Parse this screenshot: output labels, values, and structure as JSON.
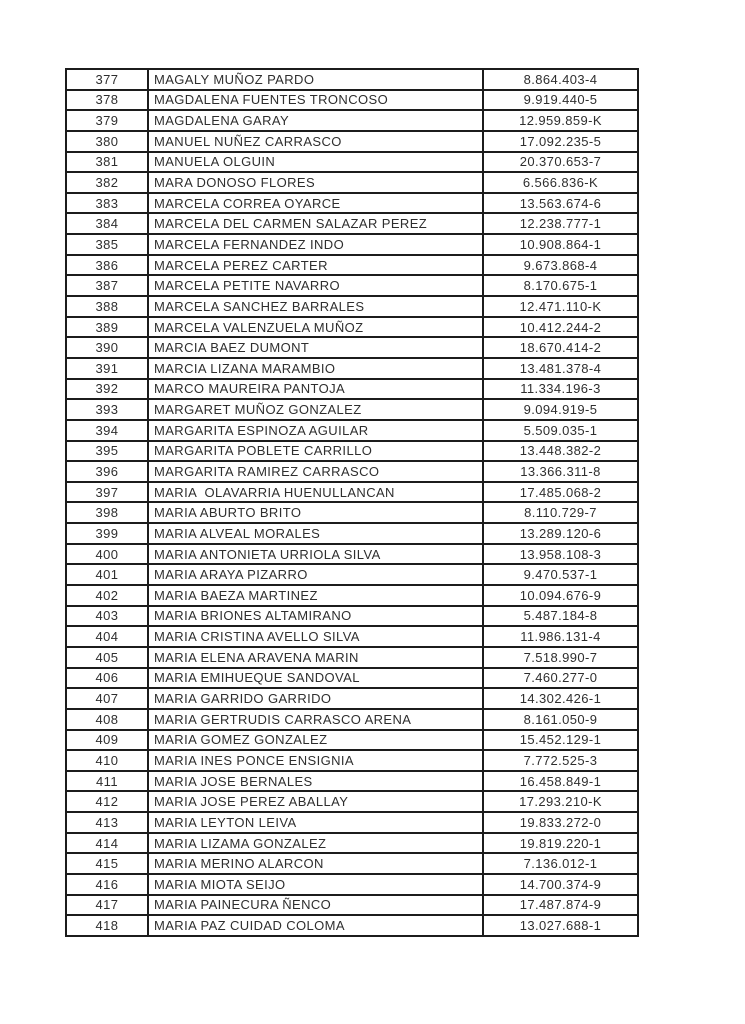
{
  "colors": {
    "text": "#2e2e2e",
    "border": "#1c1c1c",
    "background": "#ffffff"
  },
  "table": {
    "columns": [
      "row_number",
      "name",
      "rut"
    ],
    "rows": [
      [
        "377",
        "MAGALY MUÑOZ PARDO",
        "8.864.403-4"
      ],
      [
        "378",
        "MAGDALENA FUENTES TRONCOSO",
        "9.919.440-5"
      ],
      [
        "379",
        "MAGDALENA GARAY",
        "12.959.859-K"
      ],
      [
        "380",
        "MANUEL NUÑEZ CARRASCO",
        "17.092.235-5"
      ],
      [
        "381",
        "MANUELA OLGUIN",
        "20.370.653-7"
      ],
      [
        "382",
        "MARA DONOSO FLORES",
        "6.566.836-K"
      ],
      [
        "383",
        "MARCELA CORREA OYARCE",
        "13.563.674-6"
      ],
      [
        "384",
        "MARCELA DEL CARMEN SALAZAR PEREZ",
        "12.238.777-1"
      ],
      [
        "385",
        "MARCELA FERNANDEZ INDO",
        "10.908.864-1"
      ],
      [
        "386",
        "MARCELA PEREZ CARTER",
        "9.673.868-4"
      ],
      [
        "387",
        "MARCELA PETITE NAVARRO",
        "8.170.675-1"
      ],
      [
        "388",
        "MARCELA SANCHEZ BARRALES",
        "12.471.110-K"
      ],
      [
        "389",
        "MARCELA VALENZUELA MUÑOZ",
        "10.412.244-2"
      ],
      [
        "390",
        "MARCIA BAEZ DUMONT",
        "18.670.414-2"
      ],
      [
        "391",
        "MARCIA LIZANA MARAMBIO",
        "13.481.378-4"
      ],
      [
        "392",
        "MARCO MAUREIRA PANTOJA",
        "11.334.196-3"
      ],
      [
        "393",
        "MARGARET MUÑOZ GONZALEZ",
        "9.094.919-5"
      ],
      [
        "394",
        "MARGARITA ESPINOZA AGUILAR",
        "5.509.035-1"
      ],
      [
        "395",
        "MARGARITA POBLETE CARRILLO",
        "13.448.382-2"
      ],
      [
        "396",
        "MARGARITA RAMIREZ CARRASCO",
        "13.366.311-8"
      ],
      [
        "397",
        "MARIA  OLAVARRIA HUENULLANCAN",
        "17.485.068-2"
      ],
      [
        "398",
        "MARIA ABURTO BRITO",
        "8.110.729-7"
      ],
      [
        "399",
        "MARIA ALVEAL MORALES",
        "13.289.120-6"
      ],
      [
        "400",
        "MARIA ANTONIETA URRIOLA SILVA",
        "13.958.108-3"
      ],
      [
        "401",
        "MARIA ARAYA PIZARRO",
        "9.470.537-1"
      ],
      [
        "402",
        "MARIA BAEZA MARTINEZ",
        "10.094.676-9"
      ],
      [
        "403",
        "MARIA BRIONES ALTAMIRANO",
        "5.487.184-8"
      ],
      [
        "404",
        "MARIA CRISTINA AVELLO SILVA",
        "11.986.131-4"
      ],
      [
        "405",
        "MARIA ELENA ARAVENA MARIN",
        "7.518.990-7"
      ],
      [
        "406",
        "MARIA EMIHUEQUE SANDOVAL",
        "7.460.277-0"
      ],
      [
        "407",
        "MARIA GARRIDO GARRIDO",
        "14.302.426-1"
      ],
      [
        "408",
        "MARIA GERTRUDIS CARRASCO ARENA",
        "8.161.050-9"
      ],
      [
        "409",
        "MARIA GOMEZ GONZALEZ",
        "15.452.129-1"
      ],
      [
        "410",
        "MARIA INES PONCE ENSIGNIA",
        "7.772.525-3"
      ],
      [
        "411",
        "MARIA JOSE BERNALES",
        "16.458.849-1"
      ],
      [
        "412",
        "MARIA JOSE PEREZ ABALLAY",
        "17.293.210-K"
      ],
      [
        "413",
        "MARIA LEYTON LEIVA",
        "19.833.272-0"
      ],
      [
        "414",
        "MARIA LIZAMA GONZALEZ",
        "19.819.220-1"
      ],
      [
        "415",
        "MARIA MERINO ALARCON",
        "7.136.012-1"
      ],
      [
        "416",
        "MARIA MIOTA SEIJO",
        "14.700.374-9"
      ],
      [
        "417",
        "MARIA PAINECURA ÑENCO",
        "17.487.874-9"
      ],
      [
        "418",
        "MARIA PAZ CUIDAD COLOMA",
        "13.027.688-1"
      ]
    ]
  }
}
